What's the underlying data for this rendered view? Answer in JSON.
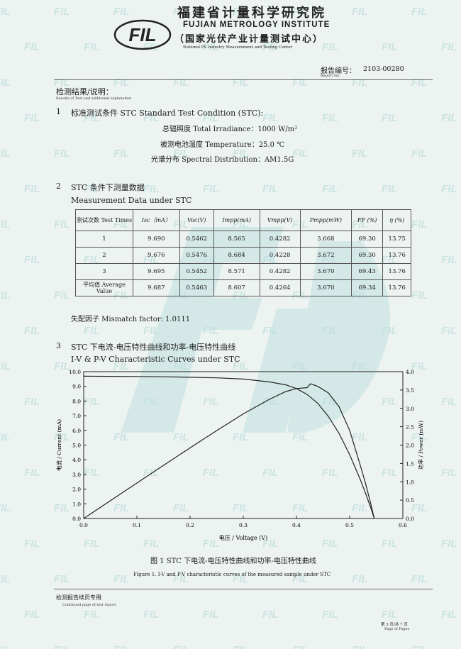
{
  "header": {
    "logo_text": "FIL",
    "org_cn": "福建省计量科学研究院",
    "org_en": "FUJIAN METROLOGY INSTITUTE",
    "center_cn": "（国家光伏产业计量测试中心）",
    "center_en": "National PV Industry Measurement and Testing Center",
    "report_label": "报告编号：",
    "report_label_en": "Report No.",
    "report_no": "2103-00280"
  },
  "results": {
    "title": "检测结果/说明：",
    "title_en": "Results of Test and additional explanation"
  },
  "section1": {
    "number": "1",
    "title": "标准测试条件 STC Standard Test Condition (STC):",
    "lines": [
      "总辐照度 Total Irradiance：1000 W/m²",
      "被测电池温度 Temperature：25.0 ℃",
      "光谱分布 Spectral Distribution：AM1.5G"
    ]
  },
  "section2": {
    "number": "2",
    "title_cn": "STC 条件下测量数据",
    "title_en": "Measurement Data under STC",
    "table": {
      "headers": [
        "测试次数 Test Times",
        "Isc（mA）",
        "Voc(V)",
        "Impp(mA)",
        "Vmpp(V)",
        "Pmpp(mW)",
        "FF (%)",
        "η (%)"
      ],
      "rows": [
        [
          "1",
          "9.690",
          "0.5462",
          "8.565",
          "0.4282",
          "3.668",
          "69.30",
          "13.75"
        ],
        [
          "2",
          "9.676",
          "0.5476",
          "8.684",
          "0.4228",
          "3.672",
          "69.30",
          "13.76"
        ],
        [
          "3",
          "9.695",
          "0.5452",
          "8.571",
          "0.4282",
          "3.670",
          "69.43",
          "13.76"
        ],
        [
          "平均值 Average Value",
          "9.687",
          "0.5463",
          "8.607",
          "0.4264",
          "3.670",
          "69.34",
          "13.76"
        ]
      ]
    },
    "mismatch": "失配因子 Mismatch factor: 1.0111"
  },
  "section3": {
    "number": "3",
    "title_cn": "STC 下电流-电压特性曲线和功率-电压特性曲线",
    "title_en": "I-V & P-V Characteristic Curves under STC",
    "caption_cn": "图 1 STC 下电流-电压特性曲线和功率-电压特性曲线",
    "caption_en": "Figure 1. I-V and P-V characteristic curves of the measured sample under STC"
  },
  "chart_data": {
    "type": "line",
    "xlabel": "电压 / Voltage (V)",
    "ylabel": "电流 / Current (mA)",
    "y2label": "功率 / Power (mW)",
    "xlim": [
      0,
      0.6
    ],
    "ylim": [
      0,
      10
    ],
    "y2lim": [
      0,
      4
    ],
    "xticks": [
      "0.0",
      "0.1",
      "0.2",
      "0.3",
      "0.4",
      "0.5",
      "0.6"
    ],
    "yticks": [
      "0.0",
      "1.0",
      "2.0",
      "3.0",
      "4.0",
      "5.0",
      "6.0",
      "7.0",
      "8.0",
      "9.0",
      "10.0"
    ],
    "y2ticks": [
      "0.0",
      "0.5",
      "1.0",
      "1.5",
      "2.0",
      "2.5",
      "3.0",
      "3.5",
      "4.0"
    ],
    "grid": false,
    "series": [
      {
        "axis": "left",
        "x": [
          0,
          0.05,
          0.1,
          0.15,
          0.2,
          0.25,
          0.3,
          0.35,
          0.38,
          0.4,
          0.42,
          0.44,
          0.46,
          0.48,
          0.5,
          0.52,
          0.53,
          0.54,
          0.5463
        ],
        "y": [
          9.69,
          9.68,
          9.67,
          9.65,
          9.62,
          9.58,
          9.5,
          9.3,
          9.1,
          8.85,
          8.45,
          7.85,
          6.95,
          5.8,
          4.35,
          2.65,
          1.7,
          0.7,
          0
        ]
      },
      {
        "axis": "right",
        "x": [
          0,
          0.05,
          0.1,
          0.15,
          0.2,
          0.25,
          0.3,
          0.35,
          0.38,
          0.4,
          0.42,
          0.4264,
          0.44,
          0.46,
          0.48,
          0.5,
          0.52,
          0.53,
          0.54,
          0.5463
        ],
        "y": [
          0,
          0.484,
          0.967,
          1.448,
          1.924,
          2.395,
          2.85,
          3.255,
          3.458,
          3.54,
          3.565,
          3.67,
          3.6,
          3.42,
          3.05,
          2.4,
          1.45,
          0.95,
          0.38,
          0
        ]
      }
    ]
  },
  "footer": {
    "left_cn": "检测报告续页专用",
    "left_en": "Continued page of test report",
    "page_cn": "第 3 页/共 7 页",
    "page_en": "Page    of    Pages"
  }
}
